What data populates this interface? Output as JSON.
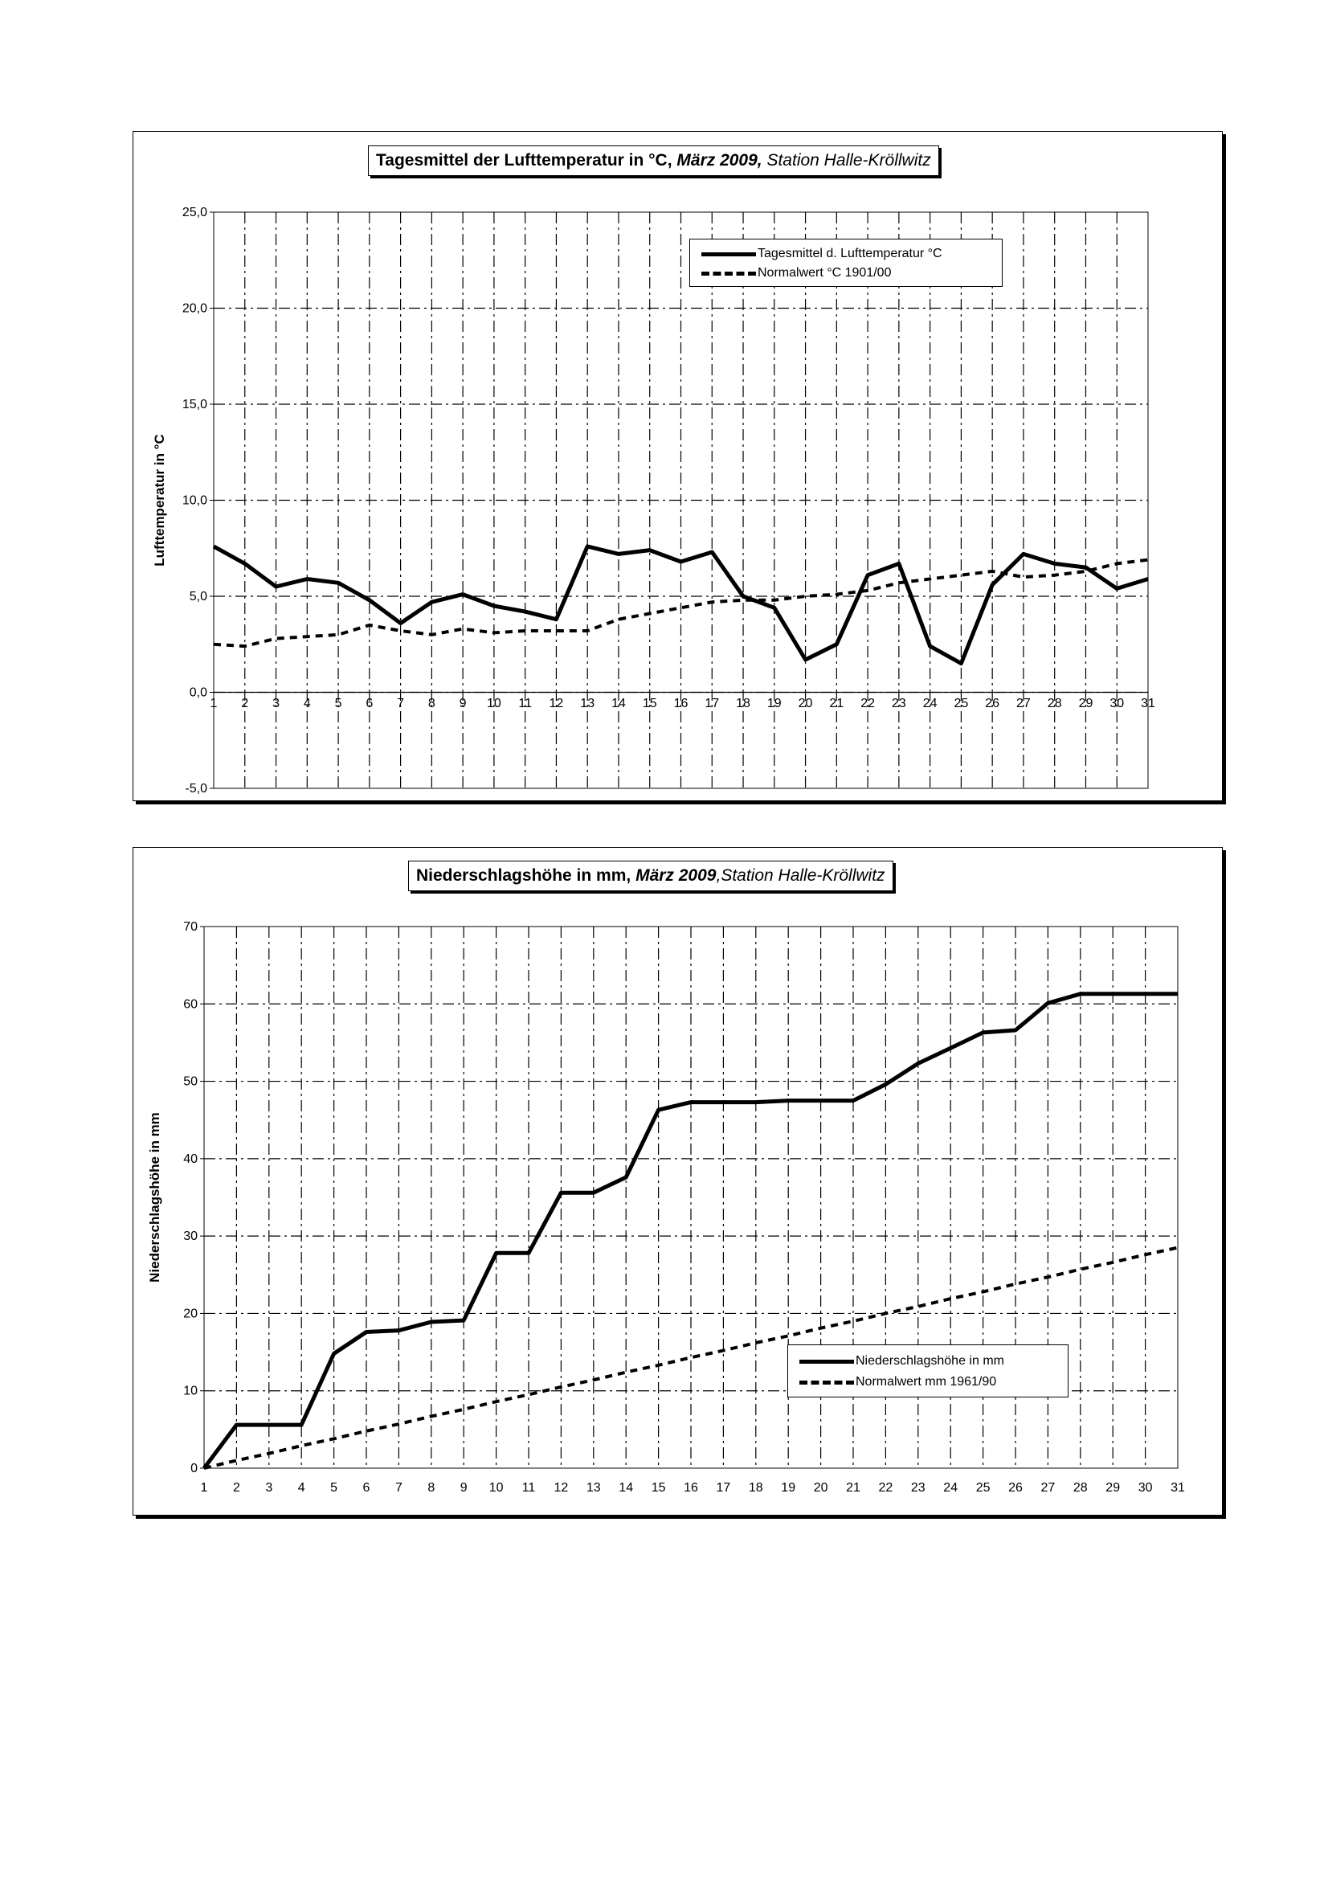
{
  "chart_data": [
    {
      "type": "line",
      "title_parts": [
        "Tagesmittel der Lufttemperatur in °C, ",
        "März 2009,",
        " Station Halle-Kröllwitz"
      ],
      "ylabel": "Lufttemperatur in °C",
      "xlabel": "",
      "ylim": [
        -5,
        25
      ],
      "yticks": [
        -5,
        0,
        5,
        10,
        15,
        20,
        25
      ],
      "ytick_labels": [
        "-5,0",
        "0,0",
        "5,0",
        "10,0",
        "15,0",
        "20,0",
        "25,0"
      ],
      "x": [
        1,
        2,
        3,
        4,
        5,
        6,
        7,
        8,
        9,
        10,
        11,
        12,
        13,
        14,
        15,
        16,
        17,
        18,
        19,
        20,
        21,
        22,
        23,
        24,
        25,
        26,
        27,
        28,
        29,
        30,
        31
      ],
      "grid": true,
      "legend_position": "top-right",
      "series": [
        {
          "name": "Tagesmittel d. Lufttemperatur °C",
          "style": "solid",
          "values": [
            7.6,
            6.7,
            5.5,
            5.9,
            5.7,
            4.8,
            3.6,
            4.7,
            5.1,
            4.5,
            4.2,
            3.8,
            7.6,
            7.2,
            7.4,
            6.8,
            7.3,
            5.0,
            4.4,
            1.7,
            2.5,
            6.1,
            6.7,
            2.4,
            1.5,
            5.6,
            7.2,
            6.7,
            6.5,
            5.4,
            5.9
          ]
        },
        {
          "name": "Normalwert °C 1901/00",
          "style": "dashed",
          "values": [
            2.5,
            2.4,
            2.8,
            2.9,
            3.0,
            3.5,
            3.2,
            3.0,
            3.3,
            3.1,
            3.2,
            3.2,
            3.2,
            3.8,
            4.1,
            4.4,
            4.7,
            4.8,
            4.8,
            5.0,
            5.1,
            5.3,
            5.7,
            5.9,
            6.1,
            6.3,
            6.0,
            6.1,
            6.3,
            6.7,
            6.9
          ]
        }
      ]
    },
    {
      "type": "line",
      "title_parts": [
        "Niederschlagshöhe in mm, ",
        "März 2009",
        ",Station Halle-Kröllwitz"
      ],
      "ylabel": "Niederschlagshöhe in mm",
      "xlabel": "",
      "ylim": [
        0,
        70
      ],
      "yticks": [
        0,
        10,
        20,
        30,
        40,
        50,
        60,
        70
      ],
      "ytick_labels": [
        "0",
        "10",
        "20",
        "30",
        "40",
        "50",
        "60",
        "70"
      ],
      "x": [
        1,
        2,
        3,
        4,
        5,
        6,
        7,
        8,
        9,
        10,
        11,
        12,
        13,
        14,
        15,
        16,
        17,
        18,
        19,
        20,
        21,
        22,
        23,
        24,
        25,
        26,
        27,
        28,
        29,
        30,
        31
      ],
      "grid": true,
      "legend_position": "bottom-right",
      "series": [
        {
          "name": "Niederschlagshöhe in mm",
          "style": "solid",
          "values": [
            0.0,
            5.6,
            5.6,
            5.6,
            14.8,
            17.6,
            17.8,
            18.9,
            19.1,
            27.8,
            27.8,
            35.6,
            35.6,
            37.6,
            46.3,
            47.3,
            47.3,
            47.3,
            47.5,
            47.5,
            47.5,
            49.6,
            52.3,
            54.3,
            56.3,
            56.6,
            60.1,
            61.3,
            61.3,
            61.3,
            61.3
          ]
        },
        {
          "name": "Normalwert mm 1961/90",
          "style": "dashed",
          "values": [
            0.0,
            1.0,
            1.9,
            2.9,
            3.8,
            4.8,
            5.7,
            6.7,
            7.6,
            8.6,
            9.5,
            10.5,
            11.4,
            12.4,
            13.3,
            14.3,
            15.2,
            16.2,
            17.1,
            18.1,
            19.0,
            20.0,
            20.9,
            21.9,
            22.8,
            23.8,
            24.7,
            25.7,
            26.6,
            27.6,
            28.5
          ]
        }
      ]
    }
  ]
}
